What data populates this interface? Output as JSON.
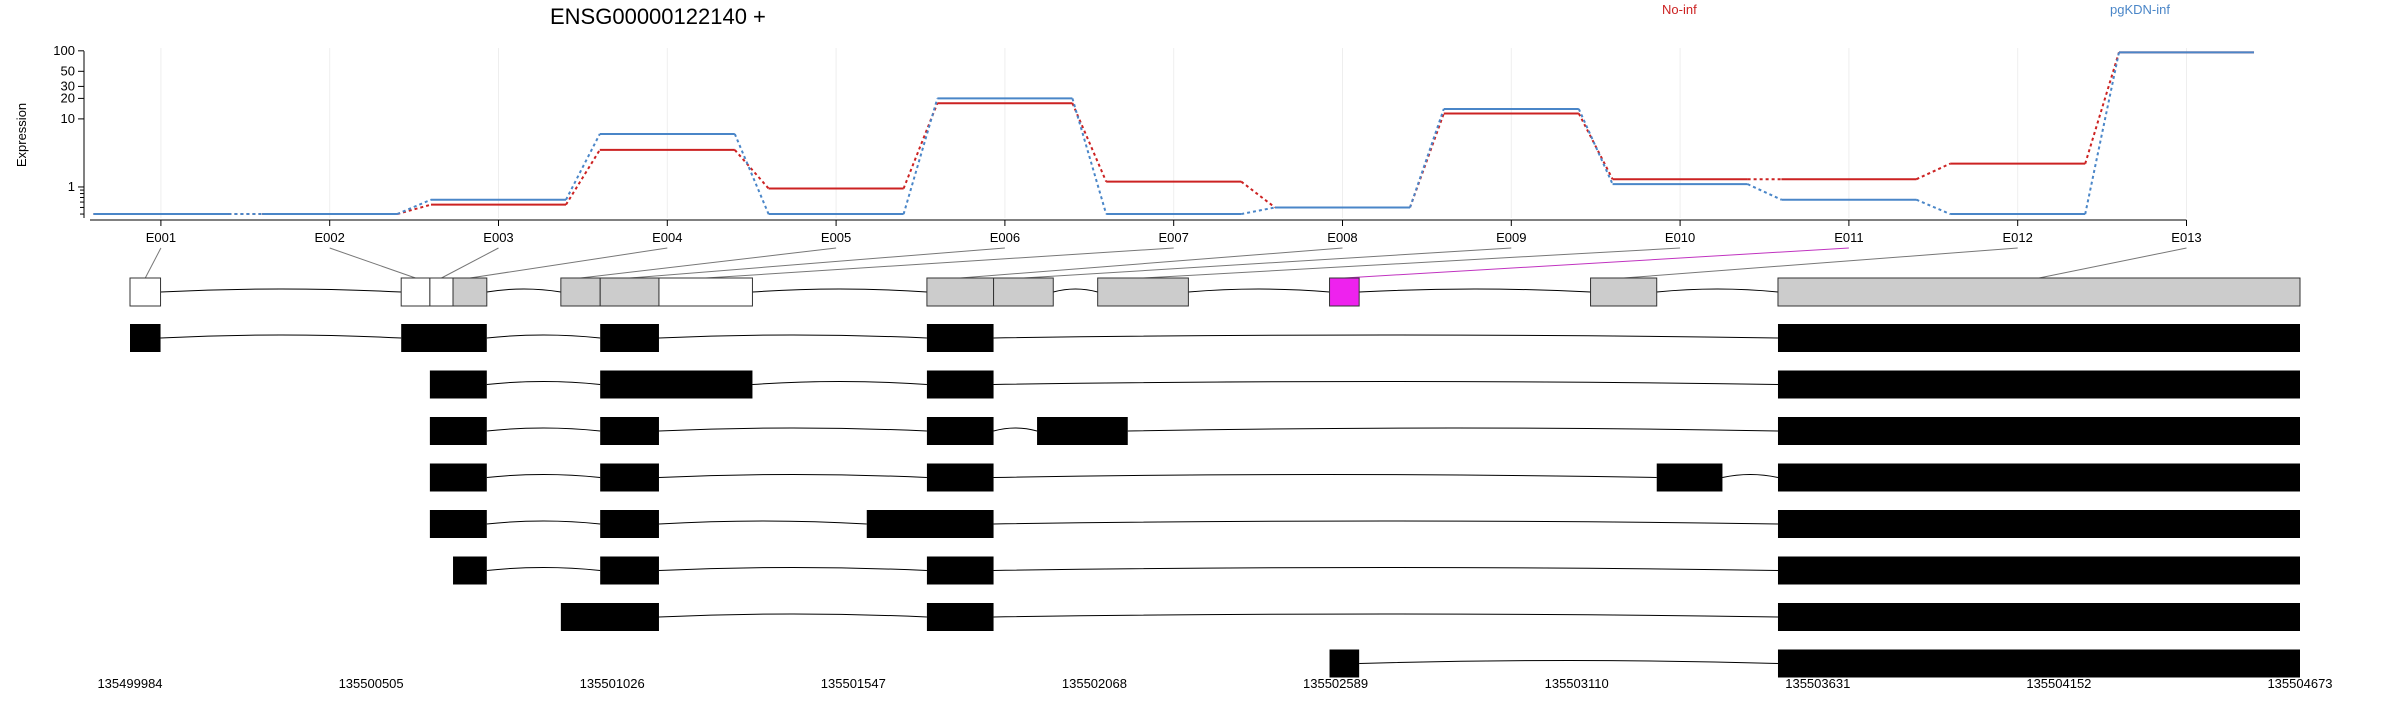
{
  "chart_data": {
    "type": "line",
    "title": "ENSG00000122140 +",
    "ylabel": "Expression",
    "yscale": "log",
    "ylim": [
      0.35,
      110
    ],
    "yticks": [
      "1",
      "10",
      "20",
      "30",
      "50",
      "100"
    ],
    "exons": [
      "E001",
      "E002",
      "E003",
      "E004",
      "E005",
      "E006",
      "E007",
      "E008",
      "E009",
      "E010",
      "E011",
      "E012",
      "E013"
    ],
    "highlight_exon": "E011",
    "series": [
      {
        "name": "No-inf",
        "color": "#cc2222",
        "values": [
          0.4,
          0.4,
          0.55,
          3.5,
          0.95,
          17,
          1.2,
          0.5,
          12,
          1.3,
          1.3,
          2.2,
          95
        ]
      },
      {
        "name": "pgKDN-inf",
        "color": "#4a86c8",
        "values": [
          0.4,
          0.4,
          0.65,
          6,
          0.4,
          20,
          0.4,
          0.5,
          14,
          1.1,
          0.65,
          0.4,
          95
        ]
      }
    ],
    "genomic_axis": {
      "start": 135499984,
      "end": 135504673,
      "ticks": [
        "135499984",
        "135500505",
        "135501026",
        "135501547",
        "135502068",
        "135502589",
        "135503110",
        "135503631",
        "135504152",
        "135504673"
      ]
    },
    "exon_regions": [
      {
        "id": "E001",
        "start": 135499984,
        "end": 135500050
      },
      {
        "id": "E002",
        "start": 135500570,
        "end": 135500632
      },
      {
        "id": "E003",
        "start": 135500632,
        "end": 135500682
      },
      {
        "id": "E004",
        "start": 135500682,
        "end": 135500755
      },
      {
        "id": "E005",
        "start": 135500915,
        "end": 135501000
      },
      {
        "id": "E006",
        "start": 135501000,
        "end": 135501127
      },
      {
        "id": "E007",
        "start": 135501127,
        "end": 135501329
      },
      {
        "id": "E008",
        "start": 135501706,
        "end": 135501850
      },
      {
        "id": "E009",
        "start": 135501850,
        "end": 135501979
      },
      {
        "id": "E010",
        "start": 135502075,
        "end": 135502271
      },
      {
        "id": "E011",
        "start": 135502576,
        "end": 135502640
      },
      {
        "id": "E012",
        "start": 135503140,
        "end": 135503283
      },
      {
        "id": "E013",
        "start": 135503545,
        "end": 135504673
      }
    ],
    "transcripts": [
      [
        [
          135499984,
          135500050
        ],
        [
          135500570,
          135500755
        ],
        [
          135501000,
          135501127
        ],
        [
          135501706,
          135501850
        ],
        [
          135503545,
          135504673
        ]
      ],
      [
        [
          135500632,
          135500755
        ],
        [
          135501000,
          135501329
        ],
        [
          135501706,
          135501850
        ],
        [
          135503545,
          135504673
        ]
      ],
      [
        [
          135500632,
          135500755
        ],
        [
          135501000,
          135501127
        ],
        [
          135501706,
          135501850
        ],
        [
          135501944,
          135502140
        ],
        [
          135503545,
          135504673
        ]
      ],
      [
        [
          135500632,
          135500755
        ],
        [
          135501000,
          135501127
        ],
        [
          135501706,
          135501850
        ],
        [
          135503283,
          135503425
        ],
        [
          135503545,
          135504673
        ]
      ],
      [
        [
          135500632,
          135500755
        ],
        [
          135501000,
          135501127
        ],
        [
          135501576,
          135501850
        ],
        [
          135503545,
          135504673
        ]
      ],
      [
        [
          135500682,
          135500755
        ],
        [
          135501000,
          135501127
        ],
        [
          135501706,
          135501850
        ],
        [
          135503545,
          135504673
        ]
      ],
      [
        [
          135500915,
          135501127
        ],
        [
          135501706,
          135501850
        ],
        [
          135503545,
          135504673
        ]
      ],
      [
        [
          135502576,
          135502640
        ],
        [
          135503545,
          135504673
        ]
      ]
    ]
  }
}
